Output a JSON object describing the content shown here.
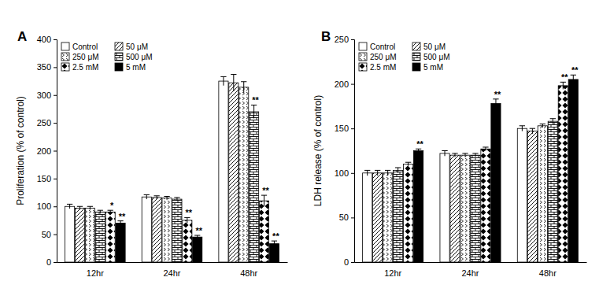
{
  "chart_data": [
    {
      "type": "bar",
      "title": "A",
      "y_label": "Proliferation (% of control)",
      "categories": [
        "12hr",
        "24hr",
        "48hr"
      ],
      "ylim": [
        0,
        400
      ],
      "yticks": [
        0,
        50,
        100,
        150,
        200,
        250,
        300,
        350,
        400
      ],
      "legend": "upper left",
      "series": [
        {
          "name": "Control",
          "color": "#ffffff",
          "values": [
            100,
            117,
            325
          ],
          "errors": [
            4,
            4,
            8
          ],
          "significance": [
            null,
            null,
            null
          ]
        },
        {
          "name": "50 μM",
          "color": "#000000",
          "values": [
            97,
            116,
            322
          ],
          "errors": [
            3,
            3,
            15
          ],
          "significance": [
            null,
            null,
            null
          ]
        },
        {
          "name": "250 μM",
          "color": "#000000",
          "values": [
            97,
            115,
            314
          ],
          "errors": [
            3,
            3,
            10
          ],
          "significance": [
            null,
            null,
            null
          ]
        },
        {
          "name": "500 μM",
          "color": "#000000",
          "values": [
            90,
            113,
            270
          ],
          "errors": [
            3,
            3,
            12
          ],
          "significance": [
            null,
            null,
            "**"
          ]
        },
        {
          "name": "2.5 mM",
          "color": "#000000",
          "values": [
            90,
            75,
            110
          ],
          "errors": [
            3,
            5,
            10
          ],
          "significance": [
            "*",
            "**",
            "**"
          ]
        },
        {
          "name": "5 mM",
          "color": "#000000",
          "values": [
            70,
            45,
            33
          ],
          "errors": [
            4,
            3,
            5
          ],
          "significance": [
            "**",
            "**",
            "**"
          ]
        }
      ]
    },
    {
      "type": "bar",
      "title": "B",
      "y_label": "LDH release (% of control)",
      "categories": [
        "12hr",
        "24hr",
        "48hr"
      ],
      "ylim": [
        0,
        250
      ],
      "yticks": [
        0,
        50,
        100,
        150,
        200,
        250
      ],
      "legend": "upper left",
      "series": [
        {
          "name": "Control",
          "color": "#ffffff",
          "values": [
            100,
            122,
            150
          ],
          "errors": [
            3,
            3,
            3
          ],
          "significance": [
            null,
            null,
            null
          ]
        },
        {
          "name": "50 μM",
          "color": "#000000",
          "values": [
            100,
            120,
            147
          ],
          "errors": [
            3,
            2,
            3
          ],
          "significance": [
            null,
            null,
            null
          ]
        },
        {
          "name": "250 μM",
          "color": "#000000",
          "values": [
            100,
            120,
            153
          ],
          "errors": [
            3,
            2,
            2
          ],
          "significance": [
            null,
            null,
            null
          ]
        },
        {
          "name": "500 μM",
          "color": "#000000",
          "values": [
            103,
            120,
            158
          ],
          "errors": [
            3,
            2,
            3
          ],
          "significance": [
            null,
            null,
            null
          ]
        },
        {
          "name": "2.5 mM",
          "color": "#000000",
          "values": [
            110,
            127,
            198
          ],
          "errors": [
            2,
            2,
            4
          ],
          "significance": [
            null,
            null,
            "**"
          ]
        },
        {
          "name": "5 mM",
          "color": "#000000",
          "values": [
            125,
            178,
            205
          ],
          "errors": [
            2,
            5,
            5
          ],
          "significance": [
            "**",
            "**",
            "**"
          ]
        }
      ]
    }
  ]
}
